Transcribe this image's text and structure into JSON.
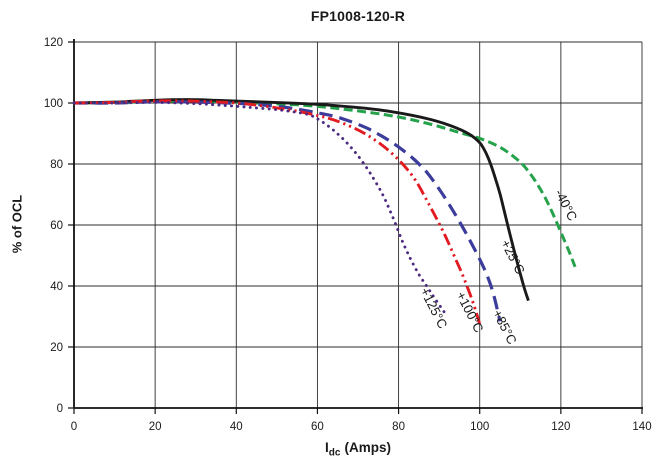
{
  "chart_data": {
    "type": "line",
    "title": "FP1008-120-R",
    "xlabel": "Idc (Amps)",
    "xlabel_parts": {
      "symbol": "I",
      "sub": "dc",
      "unit": "(Amps)"
    },
    "ylabel": "% of OCL",
    "xlim": [
      0,
      140
    ],
    "ylim": [
      0,
      120
    ],
    "xticks": [
      0,
      20,
      40,
      60,
      80,
      100,
      120,
      140
    ],
    "yticks": [
      0,
      20,
      40,
      60,
      80,
      100,
      120
    ],
    "grid": true,
    "legend_position": "inline-rotated-curve-labels",
    "series": [
      {
        "name": "-40°C",
        "color": "#25A24B",
        "style": "dashed",
        "width": 3,
        "label": {
          "text": "-40°C",
          "x": 120.3,
          "y": 65.9,
          "angle": 63
        },
        "points": [
          [
            0,
            100
          ],
          [
            10,
            100.1
          ],
          [
            20,
            100.5
          ],
          [
            30,
            100.7
          ],
          [
            40,
            100.3
          ],
          [
            50,
            99.7
          ],
          [
            55,
            99.4
          ],
          [
            60,
            98.9
          ],
          [
            65,
            98.2
          ],
          [
            70,
            97.4
          ],
          [
            75,
            96.5
          ],
          [
            80,
            95.4
          ],
          [
            85,
            94
          ],
          [
            90,
            92.3
          ],
          [
            95,
            90.3
          ],
          [
            100,
            88.4
          ],
          [
            104,
            86.2
          ],
          [
            107,
            83.8
          ],
          [
            110,
            80.6
          ],
          [
            112,
            77.6
          ],
          [
            114,
            73.8
          ],
          [
            116,
            69.3
          ],
          [
            118,
            63.8
          ],
          [
            120,
            57.6
          ],
          [
            122,
            51.4
          ],
          [
            123.5,
            46.3
          ]
        ]
      },
      {
        "name": "+25°C",
        "color": "#1A1A1A",
        "style": "solid",
        "width": 2.9,
        "label": {
          "text": "+25°C",
          "x": 107.2,
          "y": 48.9,
          "angle": 63
        },
        "points": [
          [
            0,
            100
          ],
          [
            10,
            100.3
          ],
          [
            20,
            100.9
          ],
          [
            28,
            101.1
          ],
          [
            35,
            100.9
          ],
          [
            45,
            100.4
          ],
          [
            55,
            99.9
          ],
          [
            62,
            99.4
          ],
          [
            70,
            98.5
          ],
          [
            76,
            97.6
          ],
          [
            82,
            96.3
          ],
          [
            87,
            94.9
          ],
          [
            91,
            93.4
          ],
          [
            95,
            91.4
          ],
          [
            98,
            89.3
          ],
          [
            100,
            87
          ],
          [
            101,
            85
          ],
          [
            102,
            82.3
          ],
          [
            103,
            78.8
          ],
          [
            104,
            74.7
          ],
          [
            105,
            70.2
          ],
          [
            106,
            64.8
          ],
          [
            107,
            59.4
          ],
          [
            108,
            54.1
          ],
          [
            109,
            49
          ],
          [
            110,
            44
          ],
          [
            111,
            39.3
          ],
          [
            112,
            35.2
          ]
        ]
      },
      {
        "name": "+85°C",
        "color": "#3C3C9C",
        "style": "longdash",
        "width": 3.2,
        "label": {
          "text": "+85°C",
          "x": 105.2,
          "y": 25.9,
          "angle": 63
        },
        "points": [
          [
            0,
            100
          ],
          [
            10,
            100
          ],
          [
            20,
            100.4
          ],
          [
            30,
            100.3
          ],
          [
            40,
            99.9
          ],
          [
            45,
            99.5
          ],
          [
            50,
            98.9
          ],
          [
            55,
            98
          ],
          [
            60,
            96.8
          ],
          [
            64,
            95.7
          ],
          [
            68,
            94
          ],
          [
            72,
            91.9
          ],
          [
            75,
            89.8
          ],
          [
            78,
            87.4
          ],
          [
            81,
            84.6
          ],
          [
            84,
            81.3
          ],
          [
            87,
            77.2
          ],
          [
            90,
            71.8
          ],
          [
            93,
            65.6
          ],
          [
            96,
            58.8
          ],
          [
            98,
            53.9
          ],
          [
            100,
            48.8
          ],
          [
            102,
            42.9
          ],
          [
            103.5,
            36.8
          ],
          [
            105,
            28.4
          ]
        ]
      },
      {
        "name": "+100°C",
        "color": "#E21B22",
        "style": "dashdotdot",
        "width": 2.9,
        "label": {
          "text": "+100°C",
          "x": 96.6,
          "y": 30.8,
          "angle": 63
        },
        "points": [
          [
            0,
            100
          ],
          [
            10,
            100.2
          ],
          [
            20,
            100.7
          ],
          [
            30,
            100.6
          ],
          [
            40,
            100
          ],
          [
            45,
            99.3
          ],
          [
            50,
            98.4
          ],
          [
            55,
            97.3
          ],
          [
            60,
            95.9
          ],
          [
            63,
            94.9
          ],
          [
            66,
            93.5
          ],
          [
            69,
            91.8
          ],
          [
            72,
            89.7
          ],
          [
            75,
            87.1
          ],
          [
            78,
            83.9
          ],
          [
            81,
            80
          ],
          [
            84,
            75
          ],
          [
            87,
            68
          ],
          [
            90,
            60.5
          ],
          [
            92,
            55
          ],
          [
            94,
            49
          ],
          [
            95.5,
            44.5
          ],
          [
            97,
            39.5
          ],
          [
            98.5,
            34
          ],
          [
            100,
            27.5
          ]
        ]
      },
      {
        "name": "+125°C",
        "color": "#4E2B82",
        "style": "dotted",
        "width": 2.9,
        "label": {
          "text": "+125°C",
          "x": 87.7,
          "y": 32.1,
          "angle": 63
        },
        "points": [
          [
            0,
            100
          ],
          [
            10,
            100
          ],
          [
            20,
            100.2
          ],
          [
            30,
            99.8
          ],
          [
            38,
            99.1
          ],
          [
            44,
            98.5
          ],
          [
            50,
            97.8
          ],
          [
            54,
            97.1
          ],
          [
            58,
            96.1
          ],
          [
            61,
            94
          ],
          [
            64,
            91
          ],
          [
            67,
            87.3
          ],
          [
            70,
            82.7
          ],
          [
            73,
            77
          ],
          [
            76,
            70.2
          ],
          [
            78.5,
            62.8
          ],
          [
            81,
            54.5
          ],
          [
            83,
            48.8
          ],
          [
            85,
            43.8
          ],
          [
            87,
            39.8
          ],
          [
            89,
            35.8
          ],
          [
            91.5,
            31
          ]
        ]
      }
    ]
  }
}
